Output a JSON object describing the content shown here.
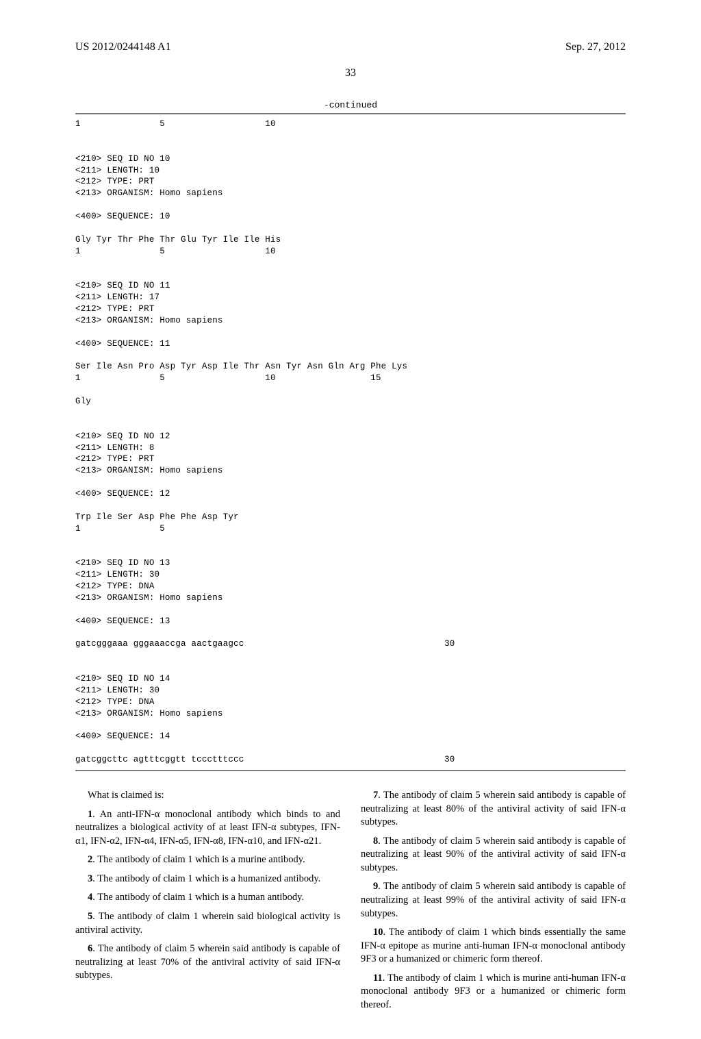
{
  "header": {
    "pub_number": "US 2012/0244148 A1",
    "pub_date": "Sep. 27, 2012"
  },
  "page_number": "33",
  "continued_label": "-continued",
  "seq_text": "1               5                   10\n\n\n<210> SEQ ID NO 10\n<211> LENGTH: 10\n<212> TYPE: PRT\n<213> ORGANISM: Homo sapiens\n\n<400> SEQUENCE: 10\n\nGly Tyr Thr Phe Thr Glu Tyr Ile Ile His\n1               5                   10\n\n\n<210> SEQ ID NO 11\n<211> LENGTH: 17\n<212> TYPE: PRT\n<213> ORGANISM: Homo sapiens\n\n<400> SEQUENCE: 11\n\nSer Ile Asn Pro Asp Tyr Asp Ile Thr Asn Tyr Asn Gln Arg Phe Lys\n1               5                   10                  15\n\nGly\n\n\n<210> SEQ ID NO 12\n<211> LENGTH: 8\n<212> TYPE: PRT\n<213> ORGANISM: Homo sapiens\n\n<400> SEQUENCE: 12\n\nTrp Ile Ser Asp Phe Phe Asp Tyr\n1               5\n\n\n<210> SEQ ID NO 13\n<211> LENGTH: 30\n<212> TYPE: DNA\n<213> ORGANISM: Homo sapiens\n\n<400> SEQUENCE: 13\n\ngatcgggaaa gggaaaccga aactgaagcc                                      30\n\n\n<210> SEQ ID NO 14\n<211> LENGTH: 30\n<212> TYPE: DNA\n<213> ORGANISM: Homo sapiens\n\n<400> SEQUENCE: 14\n\ngatcggcttc agtttcggtt tccctttccc                                      30",
  "claims": {
    "intro": "What is claimed is:",
    "items": [
      {
        "num": "1",
        "text": ". An anti-IFN-α monoclonal antibody which binds to and neutralizes a biological activity of at least IFN-α subtypes, IFN-α1, IFN-α2, IFN-α4, IFN-α5, IFN-α8, IFN-α10, and IFN-α21."
      },
      {
        "num": "2",
        "text": ". The antibody of claim 1 which is a murine antibody."
      },
      {
        "num": "3",
        "text": ". The antibody of claim 1 which is a humanized antibody."
      },
      {
        "num": "4",
        "text": ". The antibody of claim 1 which is a human antibody."
      },
      {
        "num": "5",
        "text": ". The antibody of claim 1 wherein said biological activity is antiviral activity."
      },
      {
        "num": "6",
        "text": ". The antibody of claim 5 wherein said antibody is capable of neutralizing at least 70% of the antiviral activity of said IFN-α subtypes."
      },
      {
        "num": "7",
        "text": ". The antibody of claim 5 wherein said antibody is capable of neutralizing at least 80% of the antiviral activity of said IFN-α subtypes."
      },
      {
        "num": "8",
        "text": ". The antibody of claim 5 wherein said antibody is capable of neutralizing at least 90% of the antiviral activity of said IFN-α subtypes."
      },
      {
        "num": "9",
        "text": ". The antibody of claim 5 wherein said antibody is capable of neutralizing at least 99% of the antiviral activity of said IFN-α subtypes."
      },
      {
        "num": "10",
        "text": ". The antibody of claim 1 which binds essentially the same IFN-α epitope as murine anti-human IFN-α monoclonal antibody 9F3 or a humanized or chimeric form thereof."
      },
      {
        "num": "11",
        "text": ". The antibody of claim 1 which is murine anti-human IFN-α monoclonal antibody 9F3 or a humanized or chimeric form thereof."
      }
    ]
  }
}
